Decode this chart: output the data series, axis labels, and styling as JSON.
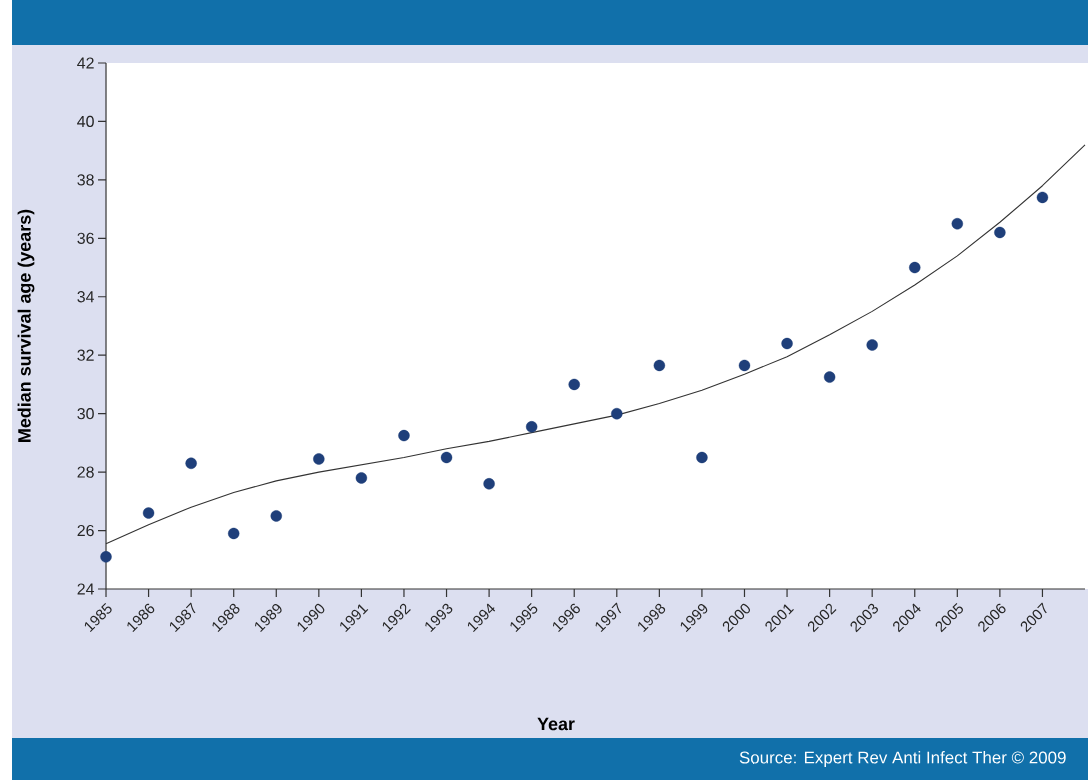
{
  "chart_data": {
    "type": "scatter",
    "xlabel": "Year",
    "ylabel": "Median survival age (years)",
    "annotations": [
      "Source: Expert Rev Anti Infect Ther © 2009"
    ],
    "xlim": [
      1985,
      2008
    ],
    "ylim": [
      24,
      42
    ],
    "xticks": [
      1985,
      1986,
      1987,
      1988,
      1989,
      1990,
      1991,
      1992,
      1993,
      1994,
      1995,
      1996,
      1997,
      1998,
      1999,
      2000,
      2001,
      2002,
      2003,
      2004,
      2005,
      2006,
      2007
    ],
    "yticks": [
      24,
      26,
      28,
      30,
      32,
      34,
      36,
      38,
      40,
      42
    ],
    "grid": false,
    "marker": "circle",
    "series": [
      {
        "color": "#1f3f7a",
        "x": [
          1985,
          1986,
          1987,
          1988,
          1989,
          1990,
          1991,
          1992,
          1993,
          1994,
          1995,
          1996,
          1997,
          1998,
          1999,
          2000,
          2001,
          2002,
          2003,
          2004,
          2005,
          2006,
          2007
        ],
        "values": [
          25.1,
          26.6,
          28.3,
          25.9,
          26.5,
          28.45,
          27.8,
          29.25,
          28.5,
          27.6,
          29.55,
          31.0,
          30.0,
          31.65,
          28.5,
          31.65,
          32.4,
          31.25,
          32.35,
          35.0,
          36.5,
          36.2,
          37.4
        ]
      },
      {
        "type": "line",
        "color": "#333333",
        "line_style": "solid",
        "marker": "none",
        "x": [
          1985,
          1986,
          1987,
          1988,
          1989,
          1990,
          1991,
          1992,
          1993,
          1994,
          1995,
          1996,
          1997,
          1998,
          1999,
          2000,
          2001,
          2002,
          2003,
          2004,
          2005,
          2006,
          2007,
          2008
        ],
        "values": [
          25.55,
          26.2,
          26.8,
          27.3,
          27.7,
          28.0,
          28.25,
          28.5,
          28.8,
          29.05,
          29.35,
          29.65,
          29.95,
          30.35,
          30.8,
          31.35,
          31.95,
          32.7,
          33.5,
          34.4,
          35.4,
          36.55,
          37.8,
          39.2
        ]
      }
    ]
  }
}
